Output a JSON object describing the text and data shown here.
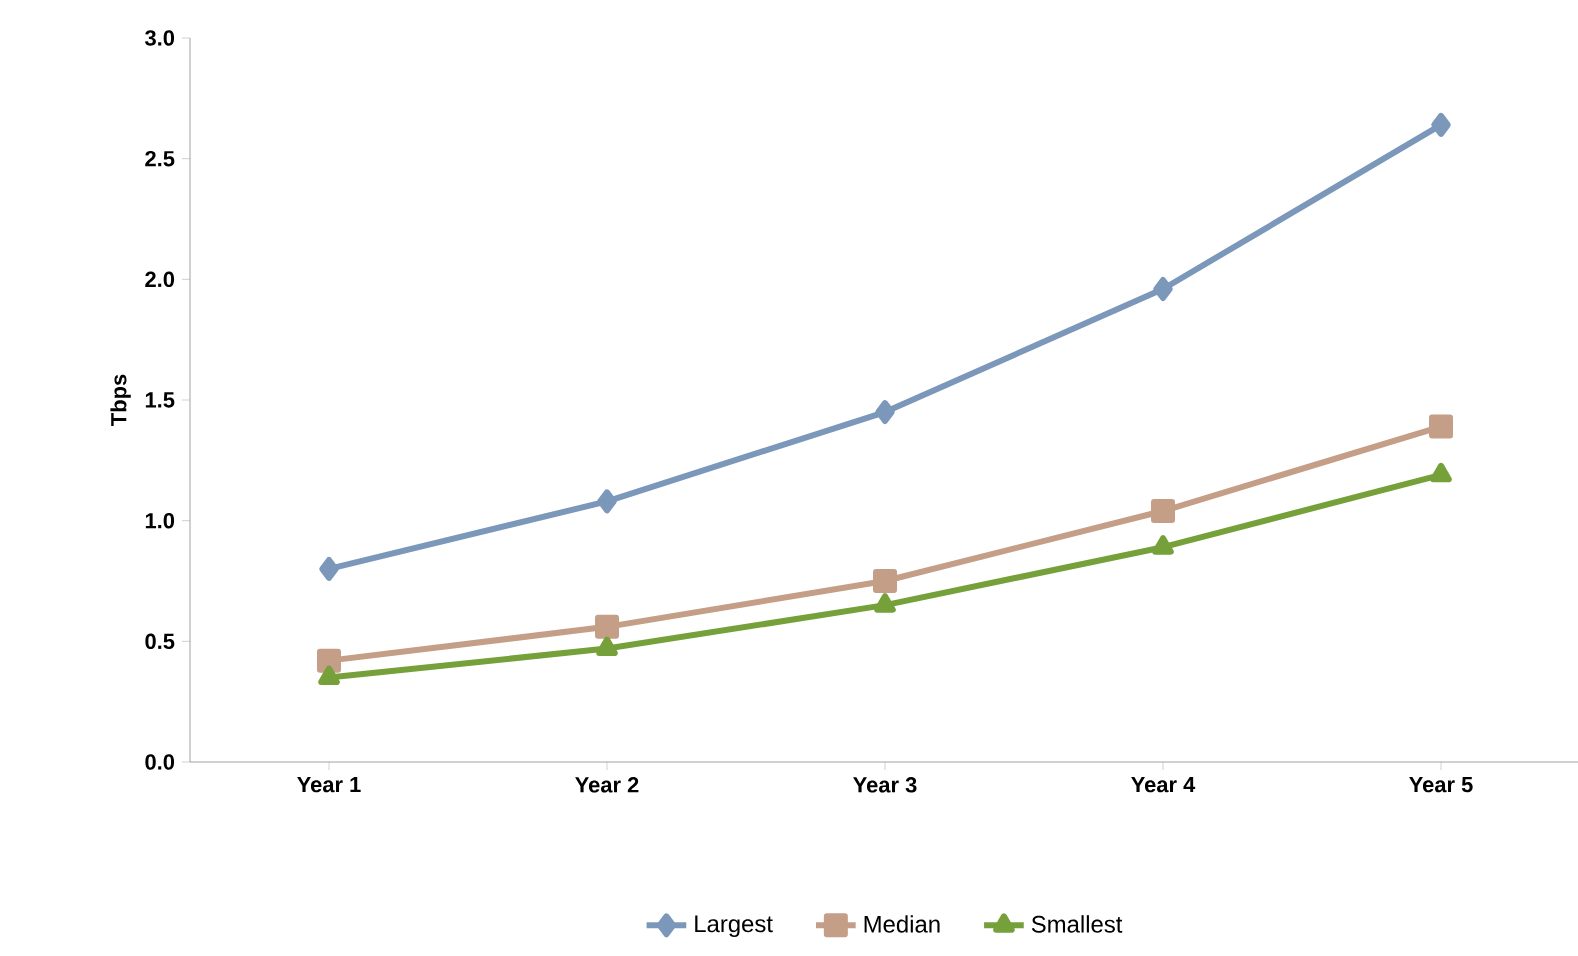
{
  "chart_data": {
    "type": "line",
    "ylabel": "Tbps",
    "categories": [
      "Year 1",
      "Year 2",
      "Year 3",
      "Year 4",
      "Year 5"
    ],
    "ylim": [
      0,
      3
    ],
    "yticks": [
      {
        "value": 0,
        "label": "0.0"
      },
      {
        "value": 0.5,
        "label": "0.5"
      },
      {
        "value": 1,
        "label": "1.0"
      },
      {
        "value": 1.5,
        "label": "1.5"
      },
      {
        "value": 2,
        "label": "2.0"
      },
      {
        "value": 2.5,
        "label": "2.5"
      },
      {
        "value": 3,
        "label": "3.0"
      }
    ],
    "series": [
      {
        "name": "Largest",
        "color": "#7b97ba",
        "marker": "diamond",
        "values": [
          0.8,
          1.08,
          1.45,
          1.96,
          2.64
        ]
      },
      {
        "name": "Median",
        "color": "#c49e86",
        "marker": "square",
        "values": [
          0.42,
          0.56,
          0.75,
          1.04,
          1.39
        ]
      },
      {
        "name": "Smallest",
        "color": "#76a03a",
        "marker": "triangle",
        "values": [
          0.35,
          0.47,
          0.65,
          0.89,
          1.19
        ]
      }
    ],
    "grid": false,
    "legend": "bottom",
    "line_style": "solid"
  }
}
